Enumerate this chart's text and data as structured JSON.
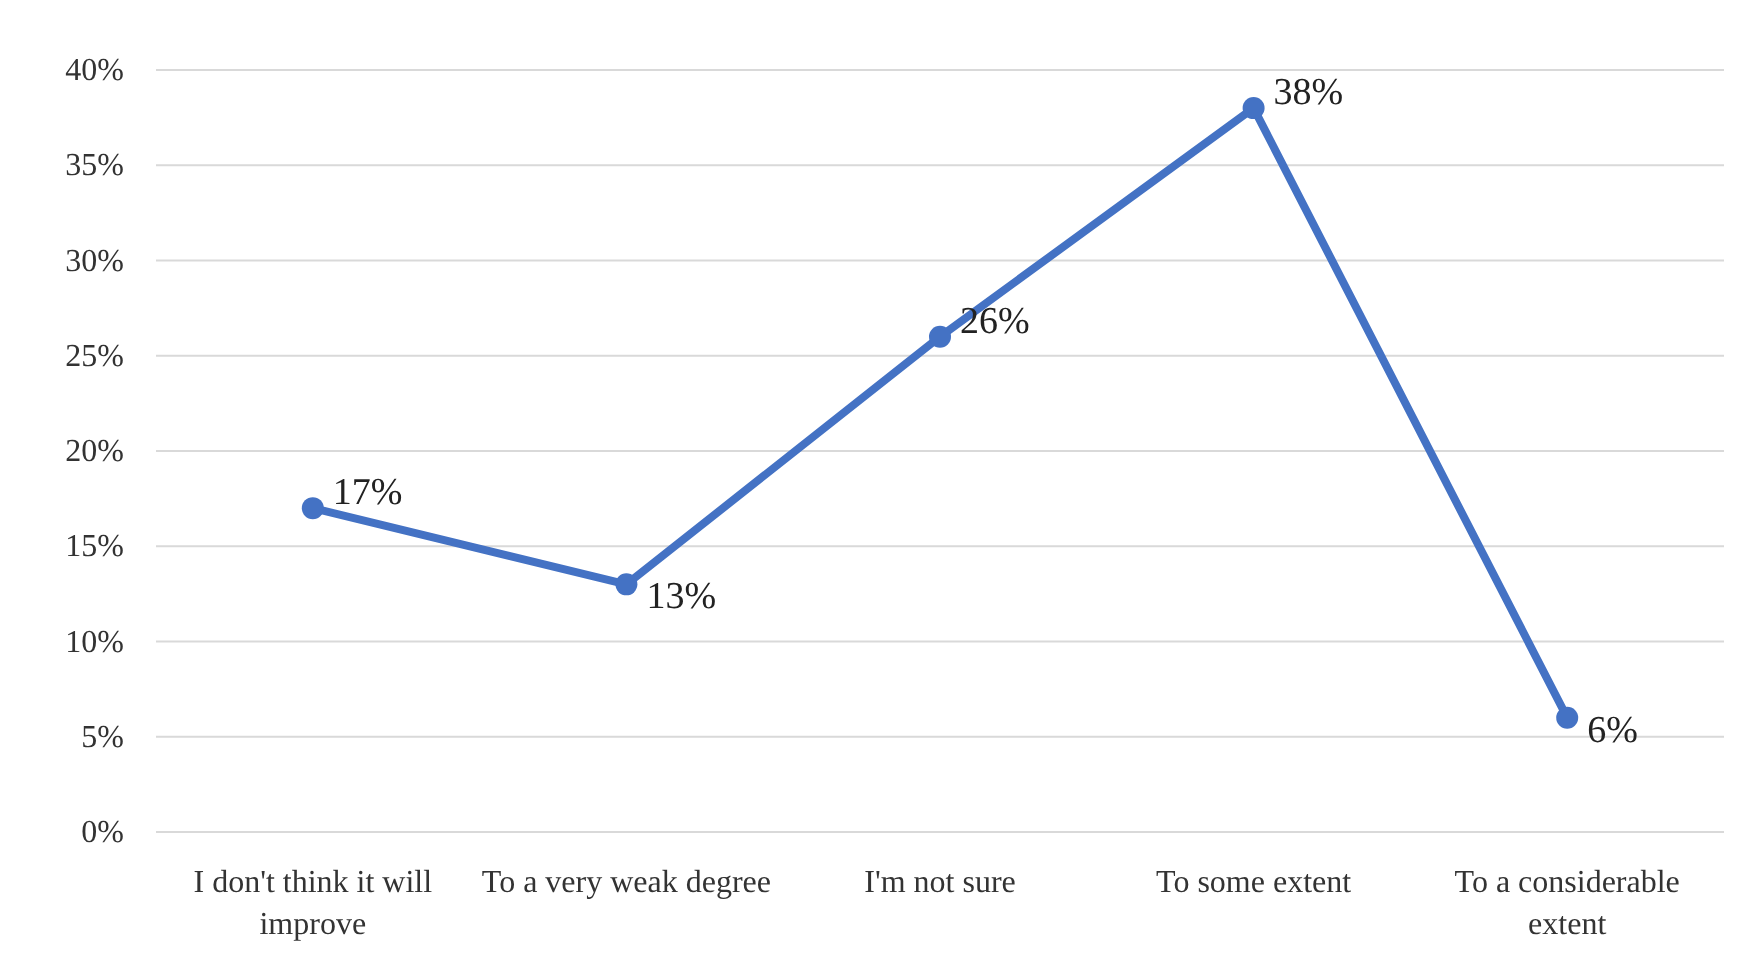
{
  "chart_data": {
    "type": "line",
    "categories": [
      "I don't think it will improve",
      "To a very weak degree",
      "I'm not sure",
      "To some extent",
      "To a considerable extent"
    ],
    "series": [
      {
        "color": "#4472c4",
        "values": [
          17,
          13,
          26,
          38,
          6
        ]
      }
    ],
    "ylim": [
      0,
      40
    ],
    "yticks": [
      {
        "value": 0,
        "label": "0%"
      },
      {
        "value": 5,
        "label": "5%"
      },
      {
        "value": 10,
        "label": "10%"
      },
      {
        "value": 15,
        "label": "15%"
      },
      {
        "value": 20,
        "label": "20%"
      },
      {
        "value": 25,
        "label": "25%"
      },
      {
        "value": 30,
        "label": "30%"
      },
      {
        "value": 35,
        "label": "35%"
      },
      {
        "value": 40,
        "label": "40%"
      }
    ],
    "grid": "y",
    "marker": "circle",
    "line_style": "solid",
    "value_labels": [
      "17%",
      "13%",
      "26%",
      "38%",
      "6%"
    ]
  }
}
